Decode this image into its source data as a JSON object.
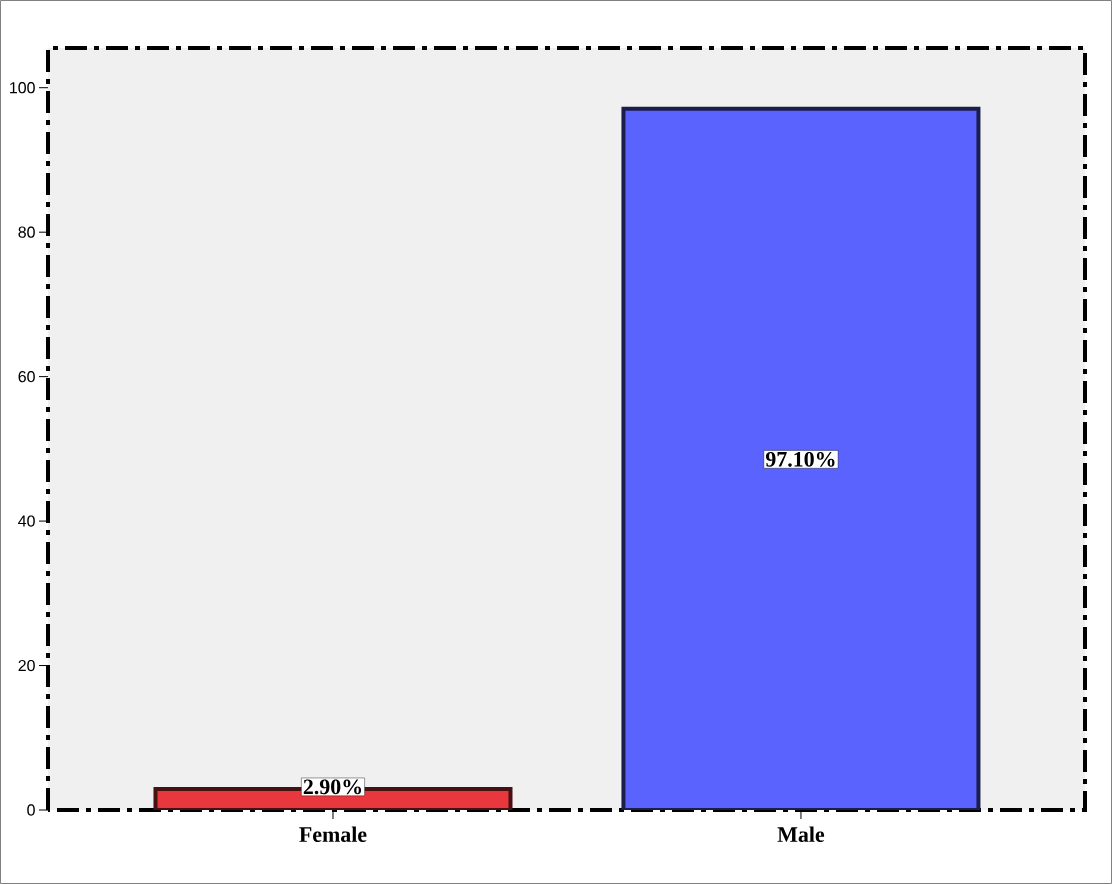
{
  "chart_data": {
    "type": "bar",
    "categories": [
      "Female",
      "Male"
    ],
    "values": [
      2.9,
      97.1
    ],
    "colors": [
      "#e8383d",
      "#5b63fe"
    ],
    "value_labels": [
      "2.90%",
      "97.10%"
    ],
    "ylim": [
      0,
      105.5
    ],
    "yticks": [
      0,
      20,
      40,
      60,
      80,
      100
    ],
    "grid": false
  }
}
